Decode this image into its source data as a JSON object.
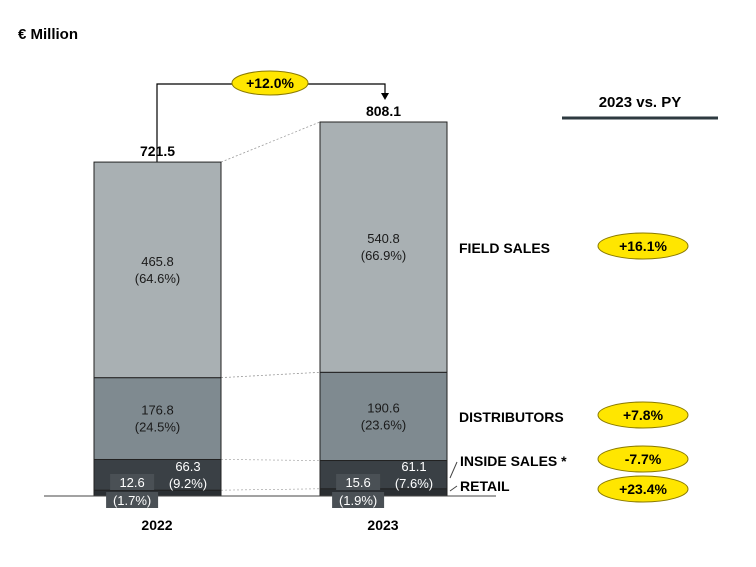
{
  "chart_data": {
    "type": "bar",
    "stacked": true,
    "unit_label": "€ Million",
    "categories": [
      "2022",
      "2023"
    ],
    "totals": [
      "721.5",
      "808.1"
    ],
    "growth_label": "+12.0%",
    "comparison_title": "2023 vs. PY",
    "series": [
      {
        "name": "RETAIL",
        "values": [
          12.6,
          15.6
        ],
        "value_labels": [
          "12.6",
          "15.6"
        ],
        "share_labels": [
          "(1.7%)",
          "(1.9%)"
        ],
        "change": "+23.4%",
        "color": "#2b2f33"
      },
      {
        "name": "INSIDE SALES *",
        "values": [
          66.3,
          61.1
        ],
        "value_labels": [
          "66.3",
          "61.1"
        ],
        "share_labels": [
          "(9.2%)",
          "(7.6%)"
        ],
        "change": "-7.7%",
        "color": "#3a4045"
      },
      {
        "name": "DISTRIBUTORS",
        "values": [
          176.8,
          190.6
        ],
        "value_labels": [
          "176.8",
          "190.6"
        ],
        "share_labels": [
          "(24.5%)",
          "(23.6%)"
        ],
        "change": "+7.8%",
        "color": "#7f8a90"
      },
      {
        "name": "FIELD SALES",
        "values": [
          465.8,
          540.8
        ],
        "value_labels": [
          "465.8",
          "540.8"
        ],
        "share_labels": [
          "(64.6%)",
          "(66.9%)"
        ],
        "change": "+16.1%",
        "color": "#a9b0b3"
      }
    ],
    "ylim": [
      0,
      808.1
    ]
  },
  "colors": {
    "badge_fill": "#ffe600",
    "badge_stroke": "#8a7a00",
    "segment_border": "#222222",
    "label_box": "#4a5055"
  }
}
